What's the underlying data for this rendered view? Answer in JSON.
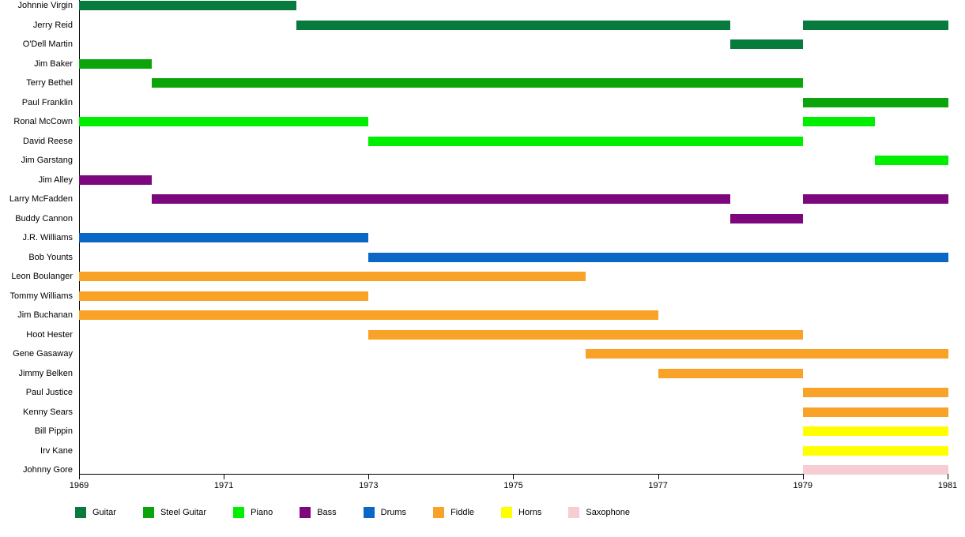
{
  "chart_data": {
    "type": "bar",
    "variant": "horizontal-gantt-timeline",
    "title": "",
    "xlabel": "",
    "ylabel": "",
    "grid": false,
    "legend_position": "bottom",
    "x_axis": {
      "min": 1969,
      "max": 1981.02,
      "ticks": [
        "1969",
        "1971",
        "1973",
        "1975",
        "1977",
        "1979",
        "1981"
      ],
      "tick_years": [
        1969,
        1971,
        1973,
        1975,
        1977,
        1979,
        1981
      ]
    },
    "instruments": [
      {
        "name": "Guitar",
        "color": "#077A3D"
      },
      {
        "name": "Steel Guitar",
        "color": "#0BA50B"
      },
      {
        "name": "Piano",
        "color": "#00EE00"
      },
      {
        "name": "Bass",
        "color": "#7D077D"
      },
      {
        "name": "Drums",
        "color": "#0A67C5"
      },
      {
        "name": "Fiddle",
        "color": "#F9A228"
      },
      {
        "name": "Horns",
        "color": "#FFFF00"
      },
      {
        "name": "Saxophone",
        "color": "#F6CDD3"
      }
    ],
    "members": [
      {
        "name": "Johnnie Virgin",
        "instrument": "Guitar",
        "segments": [
          [
            1969,
            1972
          ]
        ]
      },
      {
        "name": "Jerry Reid",
        "instrument": "Guitar",
        "segments": [
          [
            1972,
            1978
          ],
          [
            1979,
            1981.1
          ]
        ]
      },
      {
        "name": "O'Dell Martin",
        "instrument": "Guitar",
        "segments": [
          [
            1978,
            1979
          ]
        ]
      },
      {
        "name": "Jim Baker",
        "instrument": "Steel Guitar",
        "segments": [
          [
            1969,
            1970
          ]
        ]
      },
      {
        "name": "Terry Bethel",
        "instrument": "Steel Guitar",
        "segments": [
          [
            1970,
            1979
          ]
        ]
      },
      {
        "name": "Paul Franklin",
        "instrument": "Steel Guitar",
        "segments": [
          [
            1979,
            1981.1
          ]
        ]
      },
      {
        "name": "Ronal McCown",
        "instrument": "Piano",
        "segments": [
          [
            1969,
            1973
          ],
          [
            1979,
            1980
          ]
        ]
      },
      {
        "name": "David Reese",
        "instrument": "Piano",
        "segments": [
          [
            1973,
            1979
          ]
        ]
      },
      {
        "name": "Jim Garstang",
        "instrument": "Piano",
        "segments": [
          [
            1980,
            1981.1
          ]
        ]
      },
      {
        "name": "Jim Alley",
        "instrument": "Bass",
        "segments": [
          [
            1969,
            1970
          ]
        ]
      },
      {
        "name": "Larry McFadden",
        "instrument": "Bass",
        "segments": [
          [
            1970,
            1978
          ],
          [
            1979,
            1981.1
          ]
        ]
      },
      {
        "name": "Buddy Cannon",
        "instrument": "Bass",
        "segments": [
          [
            1978,
            1979
          ]
        ]
      },
      {
        "name": "J.R. Williams",
        "instrument": "Drums",
        "segments": [
          [
            1969,
            1973
          ]
        ]
      },
      {
        "name": "Bob Younts",
        "instrument": "Drums",
        "segments": [
          [
            1973,
            1981.1
          ]
        ]
      },
      {
        "name": "Leon Boulanger",
        "instrument": "Fiddle",
        "segments": [
          [
            1969,
            1976
          ]
        ]
      },
      {
        "name": "Tommy Williams",
        "instrument": "Fiddle",
        "segments": [
          [
            1969,
            1973
          ]
        ]
      },
      {
        "name": "Jim Buchanan",
        "instrument": "Fiddle",
        "segments": [
          [
            1969,
            1977
          ]
        ]
      },
      {
        "name": "Hoot Hester",
        "instrument": "Fiddle",
        "segments": [
          [
            1973,
            1979
          ]
        ]
      },
      {
        "name": "Gene Gasaway",
        "instrument": "Fiddle",
        "segments": [
          [
            1976,
            1981.1
          ]
        ]
      },
      {
        "name": "Jimmy Belken",
        "instrument": "Fiddle",
        "segments": [
          [
            1977,
            1979
          ]
        ]
      },
      {
        "name": "Paul Justice",
        "instrument": "Fiddle",
        "segments": [
          [
            1979,
            1981.1
          ]
        ]
      },
      {
        "name": "Kenny Sears",
        "instrument": "Fiddle",
        "segments": [
          [
            1979,
            1981.1
          ]
        ]
      },
      {
        "name": "Bill Pippin",
        "instrument": "Horns",
        "segments": [
          [
            1979,
            1981.1
          ]
        ]
      },
      {
        "name": "Irv Kane",
        "instrument": "Horns",
        "segments": [
          [
            1979,
            1981.1
          ]
        ]
      },
      {
        "name": "Johnny Gore",
        "instrument": "Saxophone",
        "segments": [
          [
            1979,
            1981.1
          ]
        ]
      }
    ]
  }
}
